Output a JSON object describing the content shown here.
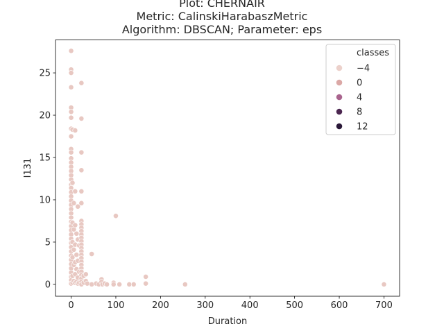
{
  "chart_data": {
    "type": "scatter",
    "title_lines": [
      "Plot: CHERNAIR",
      "Metric: CalinskiHarabaszMetric",
      "Algorithm: DBSCAN; Parameter: eps"
    ],
    "xlabel": "Duration",
    "ylabel": "I131",
    "xlim": [
      -35,
      735
    ],
    "ylim": [
      -1.4,
      28.9
    ],
    "xticks": [
      0,
      100,
      200,
      300,
      400,
      500,
      600,
      700
    ],
    "yticks": [
      0,
      5,
      10,
      15,
      20,
      25
    ],
    "grid": false,
    "legend": {
      "placement": "top-right",
      "title": "classes",
      "entries": [
        {
          "label": "−4",
          "color": "#ecd1cb"
        },
        {
          "label": "0",
          "color": "#dba8a6"
        },
        {
          "label": "4",
          "color": "#a9648e"
        },
        {
          "label": "8",
          "color": "#4b2650"
        },
        {
          "label": "12",
          "color": "#2a1838"
        }
      ]
    },
    "point_color": "#e8c8c2",
    "points": [
      [
        0,
        27.6
      ],
      [
        0,
        25.4
      ],
      [
        0,
        25.0
      ],
      [
        0,
        23.3
      ],
      [
        0,
        20.9
      ],
      [
        0,
        20.4
      ],
      [
        0,
        19.7
      ],
      [
        0,
        18.4
      ],
      [
        0,
        17.5
      ],
      [
        0,
        16.0
      ],
      [
        0,
        15.6
      ],
      [
        0,
        14.9
      ],
      [
        0,
        14.4
      ],
      [
        0,
        13.9
      ],
      [
        0,
        13.4
      ],
      [
        0,
        12.9
      ],
      [
        0,
        12.4
      ],
      [
        0,
        11.8
      ],
      [
        0,
        11.4
      ],
      [
        0,
        10.9
      ],
      [
        0,
        10.4
      ],
      [
        0,
        9.9
      ],
      [
        0,
        9.4
      ],
      [
        0,
        8.9
      ],
      [
        0,
        8.4
      ],
      [
        0,
        7.9
      ],
      [
        0,
        7.4
      ],
      [
        0,
        6.9
      ],
      [
        0,
        6.4
      ],
      [
        0,
        5.9
      ],
      [
        0,
        5.4
      ],
      [
        0,
        4.9
      ],
      [
        0,
        4.4
      ],
      [
        0,
        3.9
      ],
      [
        0,
        3.4
      ],
      [
        0,
        2.9
      ],
      [
        0,
        2.4
      ],
      [
        0,
        1.9
      ],
      [
        0,
        1.4
      ],
      [
        0,
        0.9
      ],
      [
        0,
        0.5
      ],
      [
        0,
        0.1
      ],
      [
        3,
        18.3
      ],
      [
        3,
        12.0
      ],
      [
        3,
        7.3
      ],
      [
        3,
        5.0
      ],
      [
        3,
        3.2
      ],
      [
        3,
        1.0
      ],
      [
        3,
        0.2
      ],
      [
        6,
        9.6
      ],
      [
        6,
        6.5
      ],
      [
        6,
        4.1
      ],
      [
        6,
        2.3
      ],
      [
        6,
        0.4
      ],
      [
        9,
        18.2
      ],
      [
        9,
        11.0
      ],
      [
        9,
        7.0
      ],
      [
        9,
        4.7
      ],
      [
        9,
        2.6
      ],
      [
        9,
        1.2
      ],
      [
        9,
        0.2
      ],
      [
        12,
        6.0
      ],
      [
        12,
        3.5
      ],
      [
        12,
        1.8
      ],
      [
        12,
        0.3
      ],
      [
        15,
        9.2
      ],
      [
        15,
        5.3
      ],
      [
        15,
        2.8
      ],
      [
        15,
        0.8
      ],
      [
        15,
        0.1
      ],
      [
        18,
        4.6
      ],
      [
        18,
        1.5
      ],
      [
        18,
        0.2
      ],
      [
        23,
        23.8
      ],
      [
        23,
        19.6
      ],
      [
        23,
        15.6
      ],
      [
        23,
        13.5
      ],
      [
        23,
        11.0
      ],
      [
        23,
        9.6
      ],
      [
        23,
        7.5
      ],
      [
        23,
        7.1
      ],
      [
        23,
        6.7
      ],
      [
        23,
        6.3
      ],
      [
        23,
        5.9
      ],
      [
        23,
        5.5
      ],
      [
        23,
        5.1
      ],
      [
        23,
        4.7
      ],
      [
        23,
        4.3
      ],
      [
        23,
        3.9
      ],
      [
        23,
        3.5
      ],
      [
        23,
        3.1
      ],
      [
        23,
        2.7
      ],
      [
        23,
        2.3
      ],
      [
        23,
        1.9
      ],
      [
        23,
        1.5
      ],
      [
        23,
        1.1
      ],
      [
        23,
        0.7
      ],
      [
        23,
        0.3
      ],
      [
        23,
        0.0
      ],
      [
        28,
        1.0
      ],
      [
        28,
        0.2
      ],
      [
        33,
        1.2
      ],
      [
        33,
        0.4
      ],
      [
        36,
        0.1
      ],
      [
        46,
        3.6
      ],
      [
        46,
        0.0
      ],
      [
        56,
        0.1
      ],
      [
        62,
        0.0
      ],
      [
        68,
        0.6
      ],
      [
        68,
        0.3
      ],
      [
        70,
        0.0
      ],
      [
        75,
        0.1
      ],
      [
        80,
        0.0
      ],
      [
        95,
        0.2
      ],
      [
        95,
        0.0
      ],
      [
        100,
        8.1
      ],
      [
        108,
        0.0
      ],
      [
        130,
        0.0
      ],
      [
        140,
        0.0
      ],
      [
        167,
        0.9
      ],
      [
        167,
        0.1
      ],
      [
        255,
        0.0
      ],
      [
        700,
        0.0
      ]
    ]
  }
}
